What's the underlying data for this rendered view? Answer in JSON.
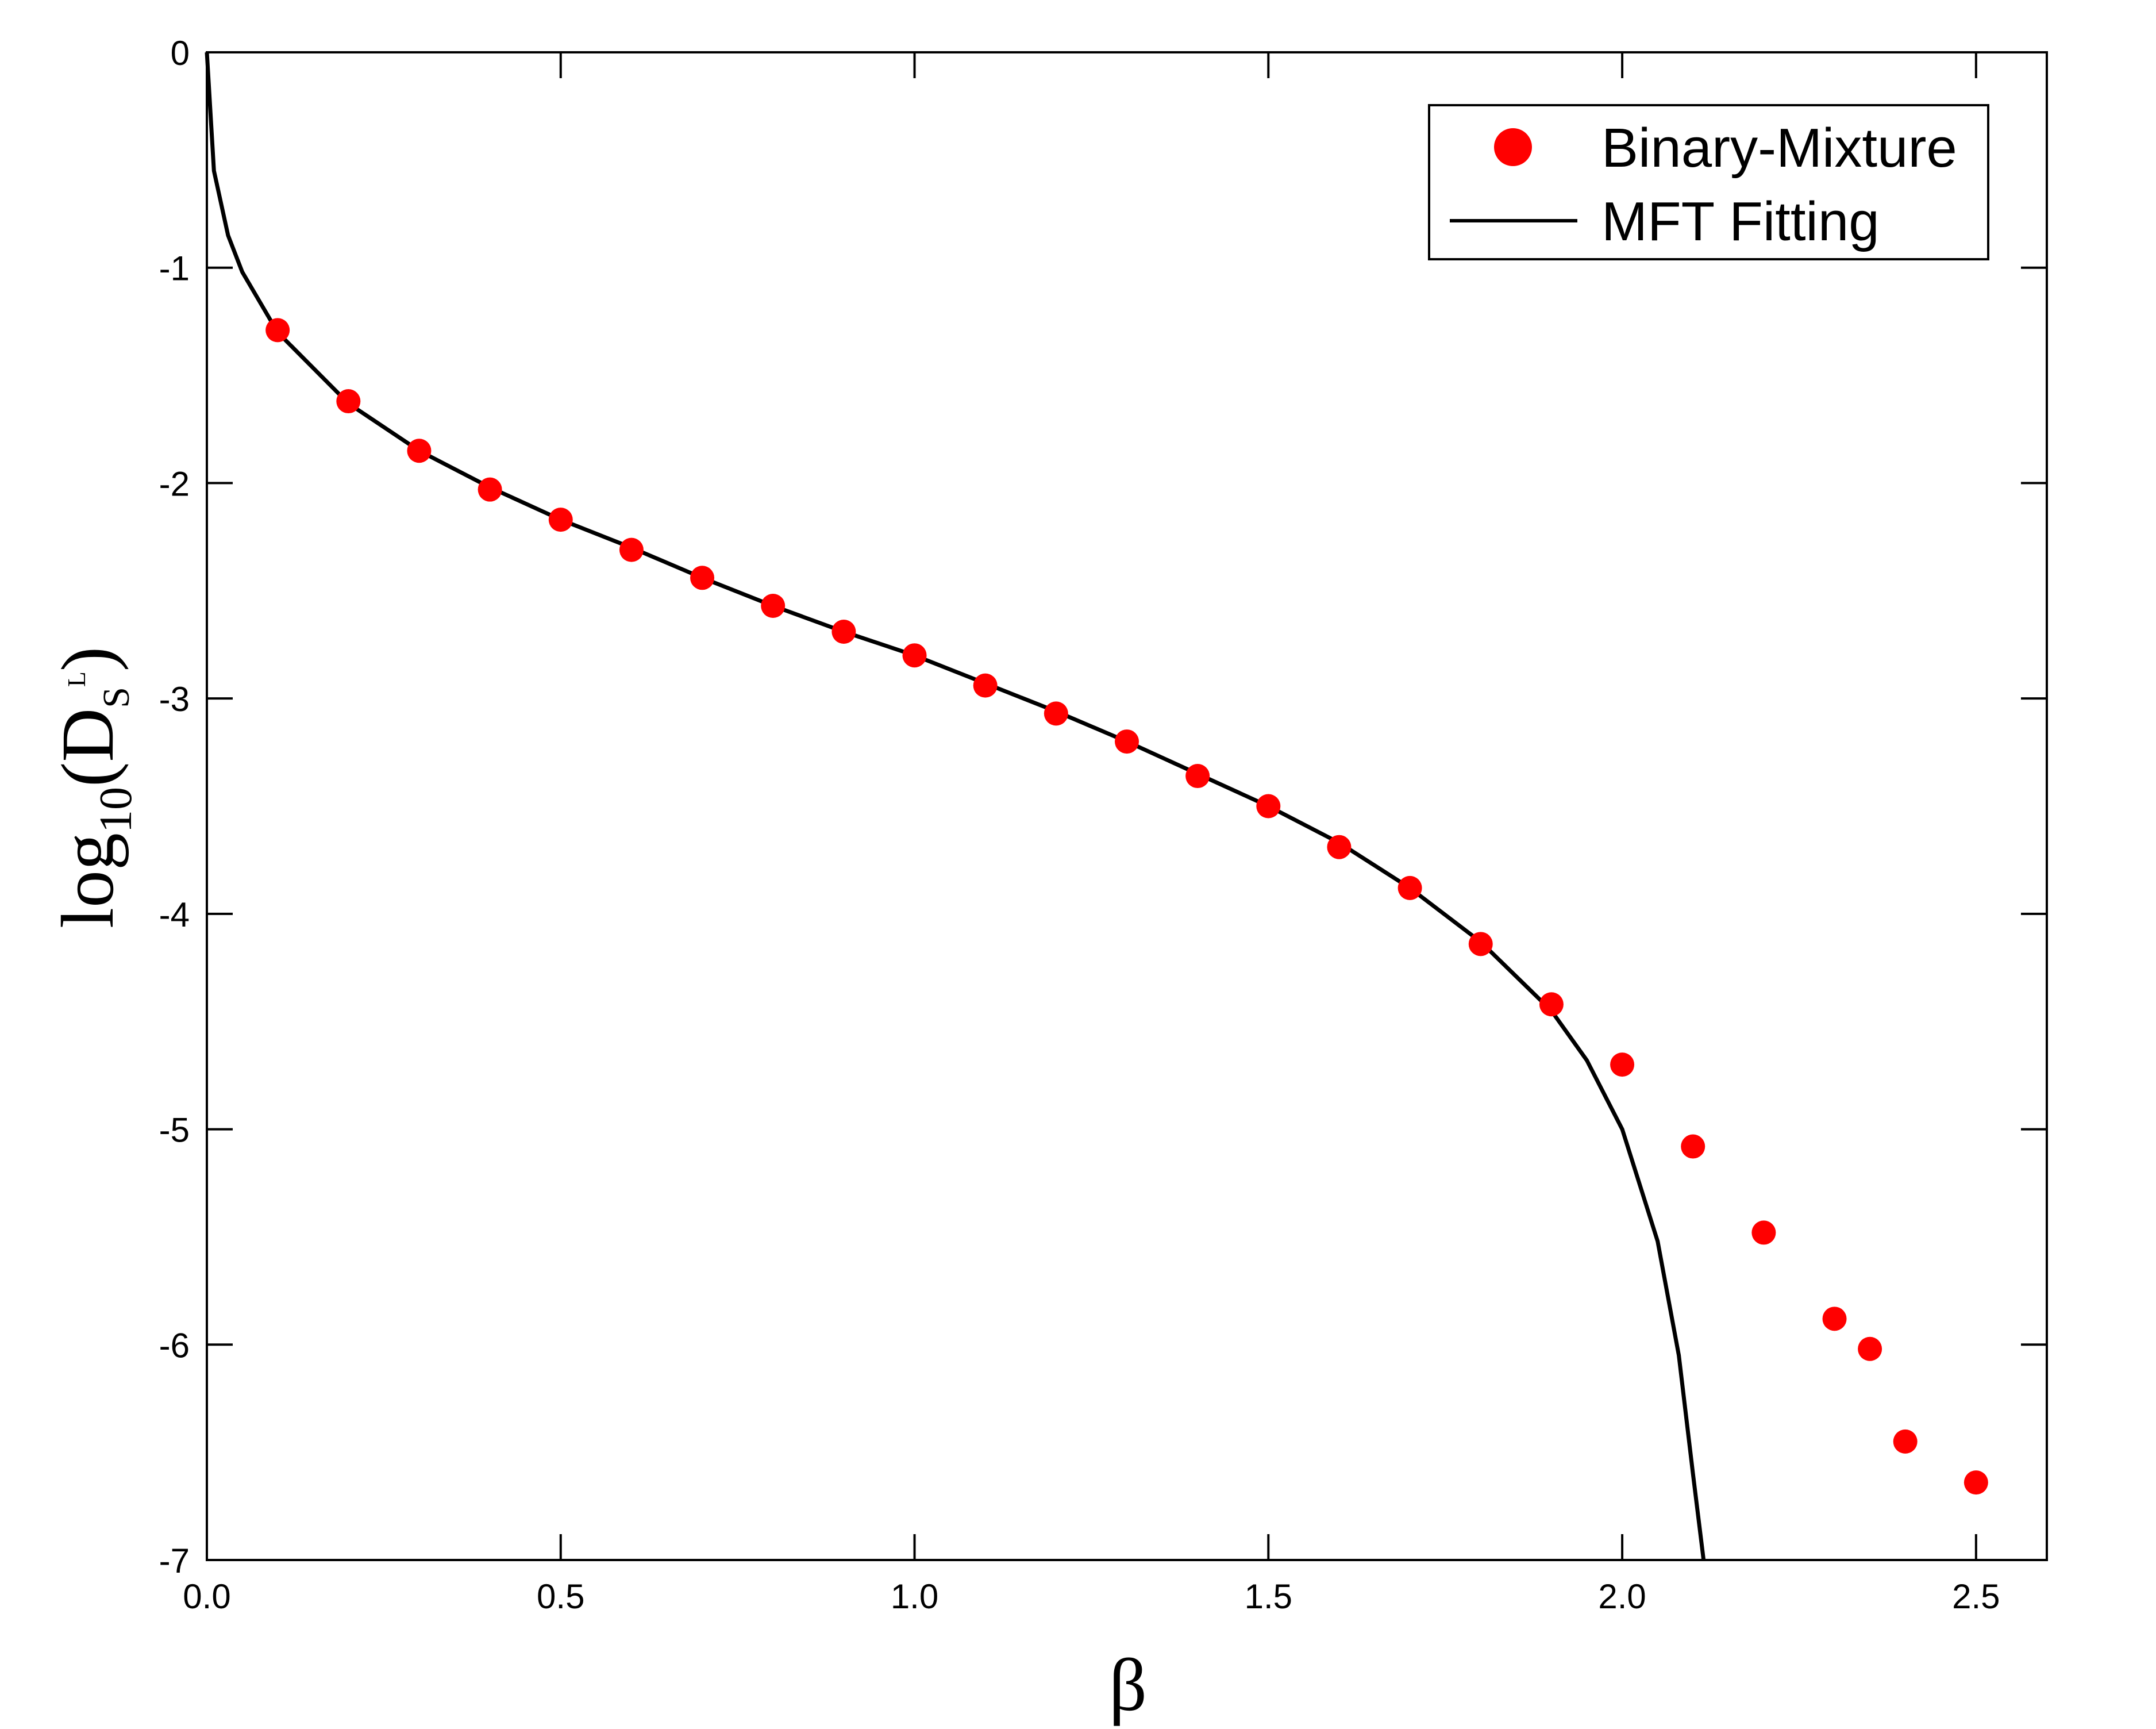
{
  "chart_data": {
    "type": "scatter",
    "xlabel": "β",
    "ylabel": {
      "prefix": "log",
      "subscript": "10",
      "open": "(D",
      "d_sub": "S",
      "d_sup": "L",
      "close": ")"
    },
    "xlim": [
      0,
      2.6
    ],
    "ylim": [
      -7,
      0
    ],
    "x_ticks": [
      0.0,
      0.5,
      1.0,
      1.5,
      2.0,
      2.5
    ],
    "x_tick_labels": [
      "0.0",
      "0.5",
      "1.0",
      "1.5",
      "2.0",
      "2.5"
    ],
    "y_ticks": [
      0,
      -1,
      -2,
      -3,
      -4,
      -5,
      -6,
      -7
    ],
    "y_tick_labels": [
      "0",
      "-1",
      "-2",
      "-3",
      "-4",
      "-5",
      "-6",
      "-7"
    ],
    "grid": false,
    "legend_position": "top-right",
    "colors": {
      "points": "#ff0000",
      "line": "#000000",
      "axes": "#000000"
    },
    "series": [
      {
        "name": "Binary-Mixture",
        "kind": "points",
        "x": [
          0.1,
          0.2,
          0.3,
          0.4,
          0.5,
          0.6,
          0.7,
          0.8,
          0.9,
          1.0,
          1.1,
          1.2,
          1.3,
          1.4,
          1.5,
          1.6,
          1.7,
          1.8,
          1.9,
          2.0,
          2.1,
          2.2,
          2.3,
          2.35,
          2.4,
          2.5
        ],
        "y": [
          -1.29,
          -1.62,
          -1.85,
          -2.03,
          -2.17,
          -2.31,
          -2.44,
          -2.57,
          -2.69,
          -2.8,
          -2.94,
          -3.07,
          -3.2,
          -3.36,
          -3.5,
          -3.69,
          -3.88,
          -4.14,
          -4.42,
          -4.7,
          -5.08,
          -5.48,
          -5.88,
          -6.02,
          -6.45,
          -6.64
        ]
      },
      {
        "name": "MFT Fitting",
        "kind": "line",
        "x": [
          0.0,
          0.01,
          0.03,
          0.05,
          0.1,
          0.2,
          0.3,
          0.4,
          0.5,
          0.6,
          0.7,
          0.8,
          0.9,
          1.0,
          1.1,
          1.2,
          1.3,
          1.4,
          1.5,
          1.6,
          1.7,
          1.8,
          1.9,
          1.95,
          2.0,
          2.05,
          2.08,
          2.1,
          2.115
        ],
        "y": [
          0.0,
          -0.55,
          -0.85,
          -1.02,
          -1.3,
          -1.63,
          -1.85,
          -2.02,
          -2.17,
          -2.3,
          -2.44,
          -2.57,
          -2.69,
          -2.8,
          -2.93,
          -3.06,
          -3.2,
          -3.35,
          -3.5,
          -3.67,
          -3.88,
          -4.13,
          -4.45,
          -4.68,
          -5.0,
          -5.52,
          -6.05,
          -6.6,
          -7.0
        ]
      }
    ]
  }
}
